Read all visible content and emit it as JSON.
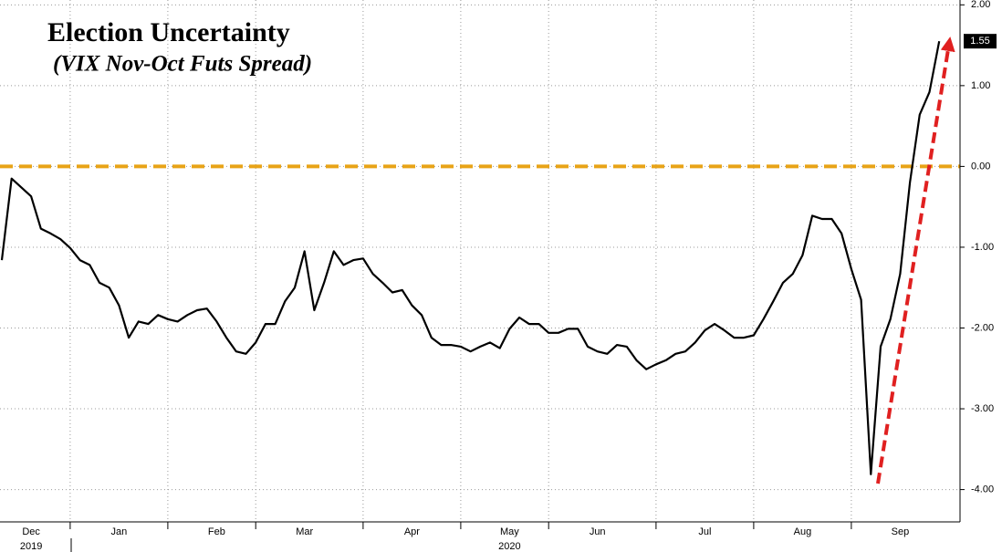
{
  "chart_data": {
    "type": "line",
    "title": "Election Uncertainty",
    "subtitle": "(VIX Nov-Oct Futs Spread)",
    "categories": [
      null,
      null,
      null,
      "Dec",
      null,
      null,
      null,
      null,
      null,
      null,
      null,
      null,
      "Jan",
      null,
      null,
      null,
      null,
      null,
      null,
      null,
      null,
      null,
      "Feb",
      null,
      null,
      null,
      null,
      null,
      null,
      null,
      null,
      "Mar",
      null,
      null,
      null,
      null,
      null,
      null,
      null,
      null,
      null,
      null,
      "Apr",
      null,
      null,
      null,
      null,
      null,
      null,
      null,
      null,
      null,
      "May",
      null,
      null,
      null,
      null,
      null,
      null,
      null,
      null,
      "Jun",
      null,
      null,
      null,
      null,
      null,
      null,
      null,
      null,
      null,
      null,
      "Jul",
      null,
      null,
      null,
      null,
      null,
      null,
      null,
      null,
      null,
      "Aug",
      null,
      null,
      null,
      null,
      null,
      null,
      null,
      null,
      null,
      "Sep",
      null,
      null,
      null,
      null
    ],
    "year_labels": [
      null,
      null,
      null,
      "2019",
      null,
      null,
      null,
      null,
      null,
      null,
      null,
      null,
      null,
      null,
      null,
      null,
      null,
      null,
      null,
      null,
      null,
      null,
      null,
      null,
      null,
      null,
      null,
      null,
      null,
      null,
      null,
      null,
      null,
      null,
      null,
      null,
      null,
      null,
      null,
      null,
      null,
      null,
      null,
      null,
      null,
      null,
      null,
      null,
      null,
      null,
      null,
      null,
      "2020",
      null,
      null,
      null,
      null,
      null,
      null,
      null,
      null,
      null,
      null,
      null,
      null,
      null,
      null,
      null,
      null,
      null,
      null,
      null,
      null,
      null,
      null,
      null,
      null,
      null,
      null,
      null,
      null,
      null,
      null,
      null,
      null,
      null,
      null,
      null,
      null,
      null,
      null,
      null,
      null,
      null,
      null,
      null,
      null
    ],
    "series": [
      {
        "name": "VIX Nov-Oct Futs Spread",
        "color": "#000000",
        "values": [
          -1.16,
          -0.15,
          -0.26,
          -0.37,
          -0.77,
          -0.83,
          -0.9,
          -1.01,
          -1.16,
          -1.22,
          -1.44,
          -1.5,
          -1.72,
          -2.12,
          -1.92,
          -1.95,
          -1.84,
          -1.89,
          -1.92,
          -1.84,
          -1.78,
          -1.76,
          -1.92,
          -2.12,
          -2.29,
          -2.32,
          -2.18,
          -1.95,
          -1.95,
          -1.67,
          -1.5,
          -1.05,
          -1.78,
          -1.44,
          -1.05,
          -1.22,
          -1.16,
          -1.14,
          -1.33,
          -1.44,
          -1.56,
          -1.53,
          -1.72,
          -1.84,
          -2.12,
          -2.21,
          -2.21,
          -2.23,
          -2.29,
          -2.23,
          -2.18,
          -2.25,
          -2.01,
          -1.87,
          -1.95,
          -1.95,
          -2.06,
          -2.06,
          -2.01,
          -2.01,
          -2.23,
          -2.29,
          -2.32,
          -2.21,
          -2.23,
          -2.4,
          -2.51,
          -2.45,
          -2.4,
          -2.32,
          -2.29,
          -2.18,
          -2.03,
          -1.95,
          -2.03,
          -2.12,
          -2.12,
          -2.09,
          -1.89,
          -1.67,
          -1.44,
          -1.33,
          -1.1,
          -0.61,
          -0.65,
          -0.65,
          -0.83,
          -1.27,
          -1.65,
          -3.81,
          -2.23,
          -1.89,
          -1.33,
          -0.2,
          0.64,
          0.92,
          1.55
        ]
      }
    ],
    "ylim": [
      -4.4,
      2.06
    ],
    "yticks": [
      {
        "value": 2,
        "label": "2.00"
      },
      {
        "value": 1,
        "label": "1.00"
      },
      {
        "value": 0,
        "label": "0.00"
      },
      {
        "value": -1,
        "label": "-1.00"
      },
      {
        "value": -2,
        "label": "-2.00"
      },
      {
        "value": -3,
        "label": "-3.00"
      },
      {
        "value": -4,
        "label": "-4.00"
      }
    ],
    "grid": true,
    "reference_line": {
      "value": 0,
      "color": "#e8a317"
    },
    "arrow_color": "#e02020"
  }
}
